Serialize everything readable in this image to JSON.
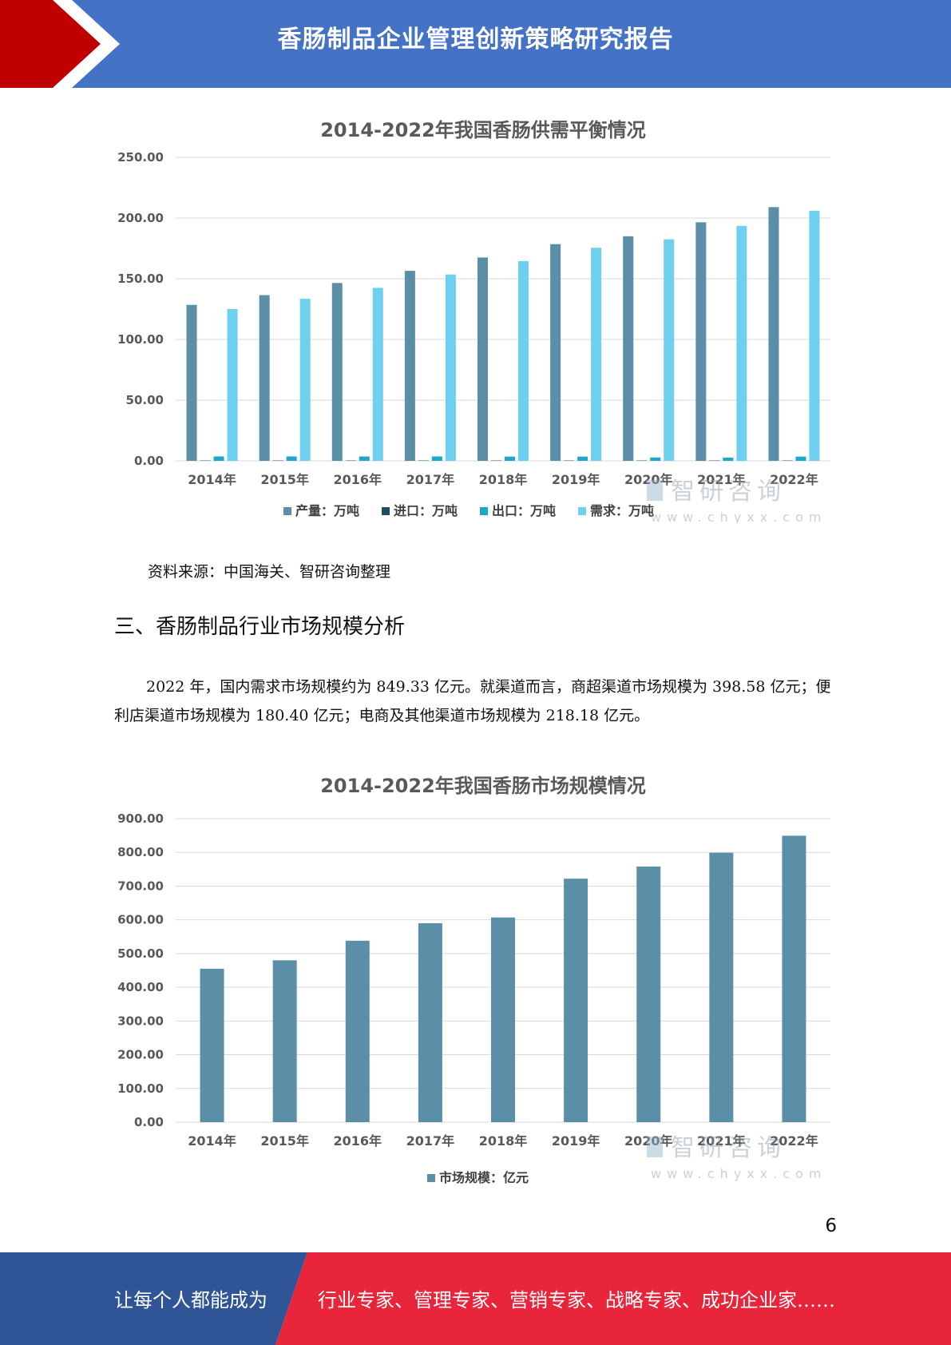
{
  "header": {
    "title": "香肠制品企业管理创新策略研究报告"
  },
  "chart_data": [
    {
      "type": "bar",
      "title": "2014-2022年我国香肠供需平衡情况",
      "categories": [
        "2014年",
        "2015年",
        "2016年",
        "2017年",
        "2018年",
        "2019年",
        "2020年",
        "2021年",
        "2022年"
      ],
      "series": [
        {
          "name": "产量：万吨",
          "color": "#5b8fa8",
          "values": [
            128.5,
            136.5,
            146.5,
            156.5,
            167.5,
            178.5,
            185,
            196.5,
            209
          ]
        },
        {
          "name": "进口：万吨",
          "color": "#1f4e62",
          "values": [
            0.3,
            0.3,
            0.3,
            0.3,
            0.3,
            0.3,
            0.3,
            0.3,
            0.3
          ]
        },
        {
          "name": "出口：万吨",
          "color": "#1fa7c9",
          "values": [
            3.6,
            3.6,
            3.6,
            3.6,
            3.5,
            3.5,
            2.8,
            2.7,
            3.5
          ]
        },
        {
          "name": "需求：万吨",
          "color": "#6dd0ef",
          "values": [
            125,
            133.5,
            142.5,
            153.5,
            164.5,
            175.5,
            182.5,
            193.5,
            206
          ]
        }
      ],
      "yticks": [
        "0.00",
        "50.00",
        "100.00",
        "150.00",
        "200.00",
        "250.00"
      ],
      "ylim": [
        0,
        250
      ],
      "grid": true,
      "legend": "bottom",
      "watermark": {
        "brand": "智研咨询",
        "url": "www.chyxx.com"
      }
    },
    {
      "type": "bar",
      "title": "2014-2022年我国香肠市场规模情况",
      "categories": [
        "2014年",
        "2015年",
        "2016年",
        "2017年",
        "2018年",
        "2019年",
        "2020年",
        "2021年",
        "2022年"
      ],
      "series": [
        {
          "name": "市场规模：亿元",
          "color": "#5b8fa8",
          "values": [
            455,
            480,
            538,
            590,
            607,
            722,
            758,
            799,
            849.33
          ]
        }
      ],
      "yticks": [
        "0.00",
        "100.00",
        "200.00",
        "300.00",
        "400.00",
        "500.00",
        "600.00",
        "700.00",
        "800.00",
        "900.00"
      ],
      "ylim": [
        0,
        900
      ],
      "grid": true,
      "legend": "bottom",
      "watermark": {
        "brand": "智研咨询",
        "url": "www.chyxx.com"
      }
    }
  ],
  "source": "资料来源：中国海关、智研咨询整理",
  "section": {
    "title": "三、香肠制品行业市场规模分析"
  },
  "paragraph": "2022 年，国内需求市场规模约为 849.33 亿元。就渠道而言，商超渠道市场规模为 398.58 亿元；便利店渠道市场规模为 180.40 亿元；电商及其他渠道市场规模为 218.18 亿元。",
  "page_number": "6",
  "footer": {
    "slogan_left": "让每个人都能成为",
    "slogan_right": "行业专家、管理专家、营销专家、战略专家、成功企业家……"
  },
  "colors": {
    "header_blue": "#4472c4",
    "header_red": "#c00000",
    "footer_blue": "#2f5597",
    "footer_red": "#e8253a"
  }
}
